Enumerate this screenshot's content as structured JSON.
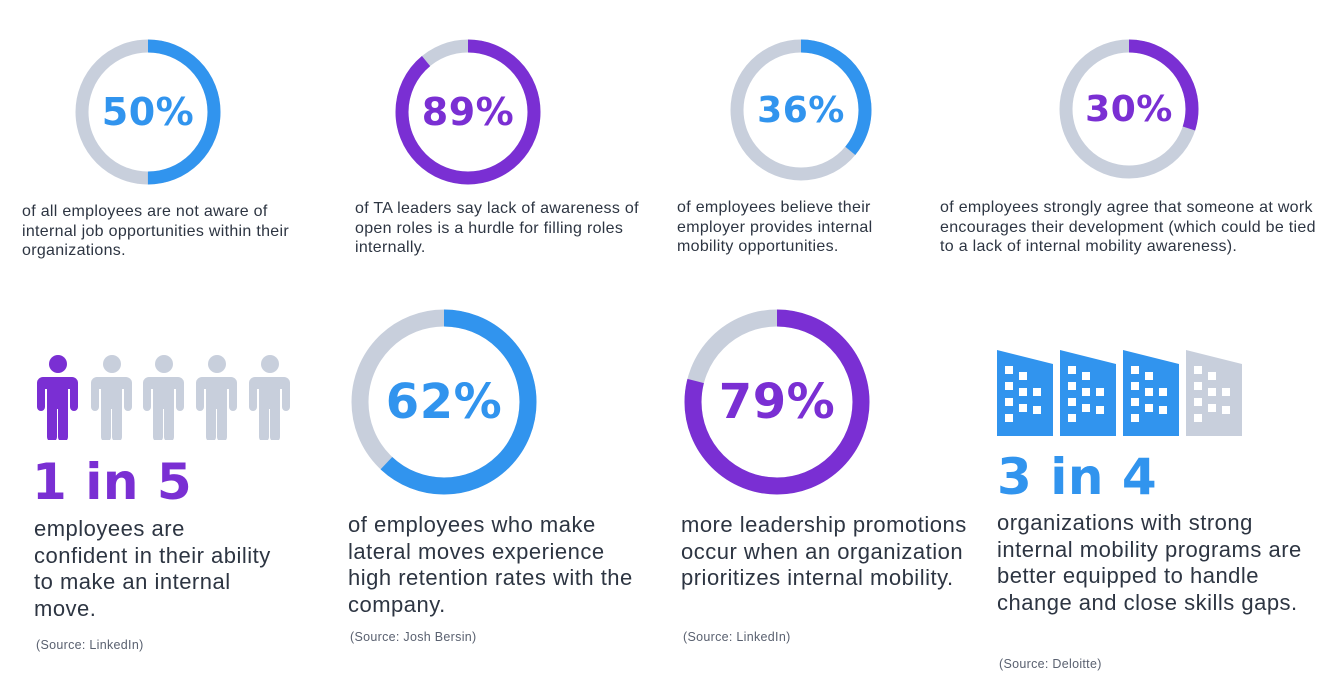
{
  "colors": {
    "blue": "#3194ee",
    "purple": "#7a2fd3",
    "track": "#c8cfdc",
    "text": "#2d3542"
  },
  "stats_top": [
    {
      "value": "50%",
      "fraction": 0.5,
      "color": "blue",
      "text": "of all employees are not aware of internal job opportunities within their organizations."
    },
    {
      "value": "89%",
      "fraction": 0.89,
      "color": "purple",
      "text": "of TA leaders say lack of awareness of open roles is a hurdle for filling roles internally."
    },
    {
      "value": "36%",
      "fraction": 0.36,
      "color": "blue",
      "text": "of employees believe their employer provides internal mobility opportunities."
    },
    {
      "value": "30%",
      "fraction": 0.3,
      "color": "purple",
      "text": "of employees strongly agree that someone at work encourages their development (which could be tied to a lack of internal mobility awareness)."
    }
  ],
  "stats_bottom": [
    {
      "value": "1 in 5",
      "icon": "person-icon",
      "icon_count": 5,
      "highlighted": 1,
      "text": "employees are confident in their ability to make an internal move.",
      "source": "(Source: LinkedIn)"
    },
    {
      "value": "62%",
      "fraction": 0.62,
      "color": "blue",
      "text": "of employees who make lateral moves experience high retention rates with the company.",
      "source": "(Source: Josh Bersin)"
    },
    {
      "value": "79%",
      "fraction": 0.79,
      "color": "purple",
      "text": "more leadership promotions occur when an organization prioritizes internal mobility.",
      "source": "(Source: LinkedIn)"
    },
    {
      "value": "3 in 4",
      "icon": "building-icon",
      "icon_count": 4,
      "highlighted": 3,
      "text": "organizations with strong internal mobility programs are better equipped to handle change and close skills gaps.",
      "source": "(Source: Deloitte)"
    }
  ]
}
